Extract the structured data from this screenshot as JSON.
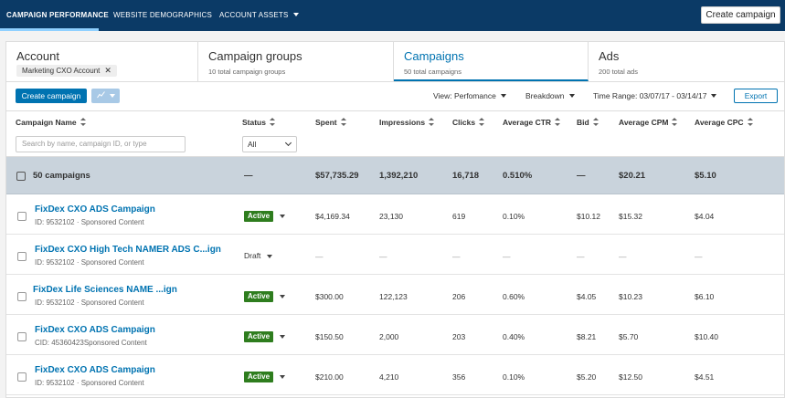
{
  "topnav": {
    "tabs": [
      "CAMPAIGN PERFORMANCE",
      "WEBSITE DEMOGRAPHICS",
      "ACCOUNT ASSETS"
    ],
    "create_button": "Create campaign"
  },
  "levels": {
    "account": {
      "title": "Account",
      "chip": "Marketing CXO Account",
      "chip_close": "✕"
    },
    "campaign_groups": {
      "title": "Campaign groups",
      "sub": "10 total campaign groups"
    },
    "campaigns": {
      "title": "Campaigns",
      "sub": "50 total campaigns"
    },
    "ads": {
      "title": "Ads",
      "sub": "200 total ads"
    }
  },
  "toolbar": {
    "create_label": "Create campaign",
    "chart_icon": "chart-icon",
    "view": "View: Perfomance",
    "breakdown": "Breakdown",
    "time_range": "Time Range:  03/07/17 - 03/14/17",
    "export": "Export"
  },
  "table": {
    "headers": [
      "Campaign Name",
      "Status",
      "Spent",
      "Impressions",
      "Clicks",
      "Average CTR",
      "Bid",
      "Average CPM",
      "Average CPC"
    ],
    "search_placeholder": "Search by name, campaign ID, or type",
    "status_filter": "All",
    "summary": {
      "label": "50 campaigns",
      "status": "—",
      "spent": "$57,735.29",
      "impressions": "1,392,210",
      "clicks": "16,718",
      "ctr": "0.510%",
      "bid": "—",
      "cpm": "$20.21",
      "cpc": "$5.10"
    },
    "rows": [
      {
        "name": "FixDex CXO ADS Campaign",
        "meta": "ID: 9532102  ·  Sponsored Content",
        "status": "Active",
        "spent": "$4,169.34",
        "impressions": "23,130",
        "clicks": "619",
        "ctr": "0.10%",
        "bid": "$10.12",
        "cpm": "$15.32",
        "cpc": "$4.04"
      },
      {
        "name": "FixDex CXO High Tech NAMER ADS C...ign",
        "meta": "ID: 9532102  ·  Sponsored Content",
        "status": "Draft",
        "spent": "—",
        "impressions": "—",
        "clicks": "—",
        "ctr": "—",
        "bid": "—",
        "cpm": "—",
        "cpc": "—"
      },
      {
        "name": "FixDex Life Sciences NAME ...ign",
        "meta": "ID: 9532102  ·  Sponsored Content",
        "status": "Active",
        "spent": "$300.00",
        "impressions": "122,123",
        "clicks": "206",
        "ctr": "0.60%",
        "bid": "$4.05",
        "cpm": "$10.23",
        "cpc": "$6.10"
      },
      {
        "name": "FixDex CXO ADS Campaign",
        "meta": "CID: 45360423Sponsored Content",
        "status": "Active",
        "spent": "$150.50",
        "impressions": "2,000",
        "clicks": "203",
        "ctr": "0.40%",
        "bid": "$8.21",
        "cpm": "$5.70",
        "cpc": "$10.40"
      },
      {
        "name": "FixDex CXO ADS Campaign",
        "meta": "ID: 9532102  ·  Sponsored Content",
        "status": "Active",
        "spent": "$210.00",
        "impressions": "4,210",
        "clicks": "356",
        "ctr": "0.10%",
        "bid": "$5.20",
        "cpm": "$12.50",
        "cpc": "$4.51"
      }
    ]
  },
  "colors": {
    "nav_bg": "#0b3a66",
    "accent": "#0073b1",
    "active_badge": "#2e7d1e",
    "summary_bg": "#c9d3dc"
  }
}
